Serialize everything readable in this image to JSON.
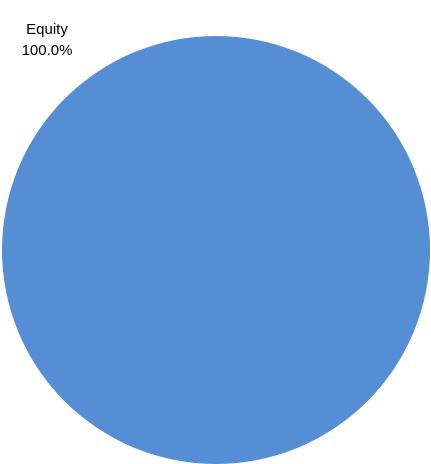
{
  "chart_data": {
    "type": "pie",
    "slices": [
      {
        "label": "Equity",
        "value": 100.0,
        "percent_label": "100.0%",
        "color": "#558ED5"
      }
    ]
  }
}
